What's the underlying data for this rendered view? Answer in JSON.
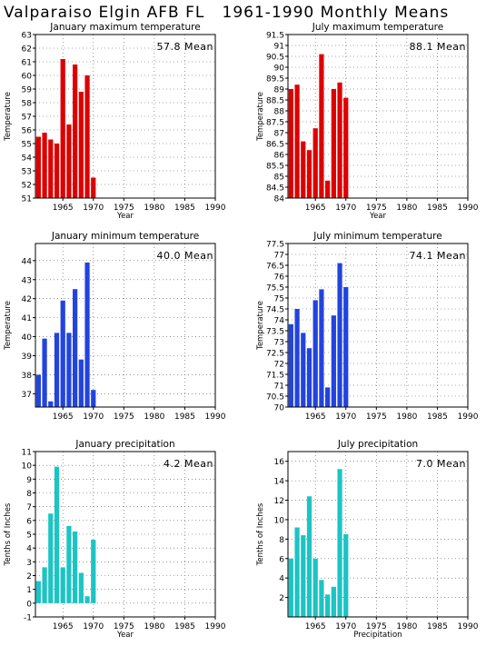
{
  "figure": {
    "title": "Valparaiso Elgin AFB FL   1961-1990 Monthly Means"
  },
  "chart_data": [
    {
      "type": "bar",
      "title": "January maximum temperature",
      "mean_label": "57.8 Mean",
      "xlabel": "Year",
      "ylabel": "Temperature",
      "x": [
        1961,
        1962,
        1963,
        1964,
        1965,
        1966,
        1967,
        1968,
        1969,
        1970
      ],
      "values": [
        55.5,
        55.8,
        55.3,
        55.0,
        61.2,
        56.4,
        60.8,
        58.8,
        60.0,
        52.5
      ],
      "ylim": [
        51,
        63
      ],
      "xlim": [
        1960.5,
        1990
      ],
      "yticks": [
        51,
        52,
        53,
        54,
        55,
        56,
        57,
        58,
        59,
        60,
        61,
        62,
        63
      ],
      "xticks": [
        1965,
        1970,
        1975,
        1980,
        1985,
        1990
      ],
      "color": "#dd0000",
      "grid": true
    },
    {
      "type": "bar",
      "title": "July maximum temperature",
      "mean_label": "88.1 Mean",
      "xlabel": "Year",
      "ylabel": "Temperature",
      "x": [
        1961,
        1962,
        1963,
        1964,
        1965,
        1966,
        1967,
        1968,
        1969,
        1970
      ],
      "values": [
        89.0,
        89.2,
        86.6,
        86.2,
        87.2,
        90.6,
        84.8,
        89.0,
        89.3,
        88.6
      ],
      "ylim": [
        84,
        91.5
      ],
      "xlim": [
        1960.5,
        1990
      ],
      "yticks": [
        84,
        84.5,
        85,
        85.5,
        86,
        86.5,
        87,
        87.5,
        88,
        88.5,
        89,
        89.5,
        90,
        90.5,
        91,
        91.5
      ],
      "xticks": [
        1965,
        1970,
        1975,
        1980,
        1985,
        1990
      ],
      "color": "#dd0000",
      "grid": true
    },
    {
      "type": "bar",
      "title": "January minimum temperature",
      "mean_label": "40.0 Mean",
      "xlabel": "",
      "ylabel": "Temperature",
      "x": [
        1961,
        1962,
        1963,
        1964,
        1965,
        1966,
        1967,
        1968,
        1969,
        1970
      ],
      "values": [
        38.0,
        39.9,
        36.6,
        40.2,
        41.9,
        40.2,
        42.5,
        38.8,
        43.9,
        37.2
      ],
      "ylim": [
        36.3,
        44.9
      ],
      "xlim": [
        1960.5,
        1990
      ],
      "yticks": [
        37,
        38,
        39,
        40,
        41,
        42,
        43,
        44
      ],
      "xticks": [
        1965,
        1970,
        1975,
        1980,
        1985,
        1990
      ],
      "color": "#2244dd",
      "grid": true
    },
    {
      "type": "bar",
      "title": "July minimum temperature",
      "mean_label": "74.1 Mean",
      "xlabel": "",
      "ylabel": "Temperature",
      "x": [
        1961,
        1962,
        1963,
        1964,
        1965,
        1966,
        1967,
        1968,
        1969,
        1970
      ],
      "values": [
        73.8,
        74.5,
        73.4,
        72.7,
        74.9,
        75.4,
        70.9,
        74.2,
        76.6,
        75.5
      ],
      "ylim": [
        70,
        77.5
      ],
      "xlim": [
        1960.5,
        1990
      ],
      "yticks": [
        70,
        70.5,
        71,
        71.5,
        72,
        72.5,
        73,
        73.5,
        74,
        74.5,
        75,
        75.5,
        76,
        76.5,
        77,
        77.5
      ],
      "xticks": [
        1965,
        1970,
        1975,
        1980,
        1985,
        1990
      ],
      "color": "#2244dd",
      "grid": true
    },
    {
      "type": "bar",
      "title": "January precipitation",
      "mean_label": "4.2 Mean",
      "xlabel": "Year",
      "ylabel": "Tenths of Inches",
      "x": [
        1961,
        1962,
        1963,
        1964,
        1965,
        1966,
        1967,
        1968,
        1969,
        1970
      ],
      "values": [
        1.6,
        2.6,
        6.5,
        9.9,
        2.6,
        5.6,
        5.2,
        2.2,
        0.5,
        4.6
      ],
      "ylim": [
        -1,
        11
      ],
      "xlim": [
        1960.5,
        1990
      ],
      "yticks": [
        -1,
        0,
        1,
        2,
        3,
        4,
        5,
        6,
        7,
        8,
        9,
        10,
        11
      ],
      "xticks": [
        1965,
        1970,
        1975,
        1980,
        1985,
        1990
      ],
      "color": "#1cc4c4",
      "grid": true
    },
    {
      "type": "bar",
      "title": "July precipitation",
      "mean_label": "7.0 Mean",
      "xlabel": "Precipitation",
      "ylabel": "Tenths of Inches",
      "x": [
        1961,
        1962,
        1963,
        1964,
        1965,
        1966,
        1967,
        1968,
        1969,
        1970
      ],
      "values": [
        6.0,
        9.2,
        8.4,
        12.4,
        6.0,
        3.8,
        2.3,
        3.1,
        15.2,
        8.5
      ],
      "ylim": [
        0,
        17
      ],
      "xlim": [
        1960.5,
        1990
      ],
      "yticks": [
        2,
        4,
        6,
        8,
        10,
        12,
        14,
        16
      ],
      "xticks": [
        1965,
        1970,
        1975,
        1980,
        1985,
        1990
      ],
      "color": "#1cc4c4",
      "grid": true
    }
  ]
}
